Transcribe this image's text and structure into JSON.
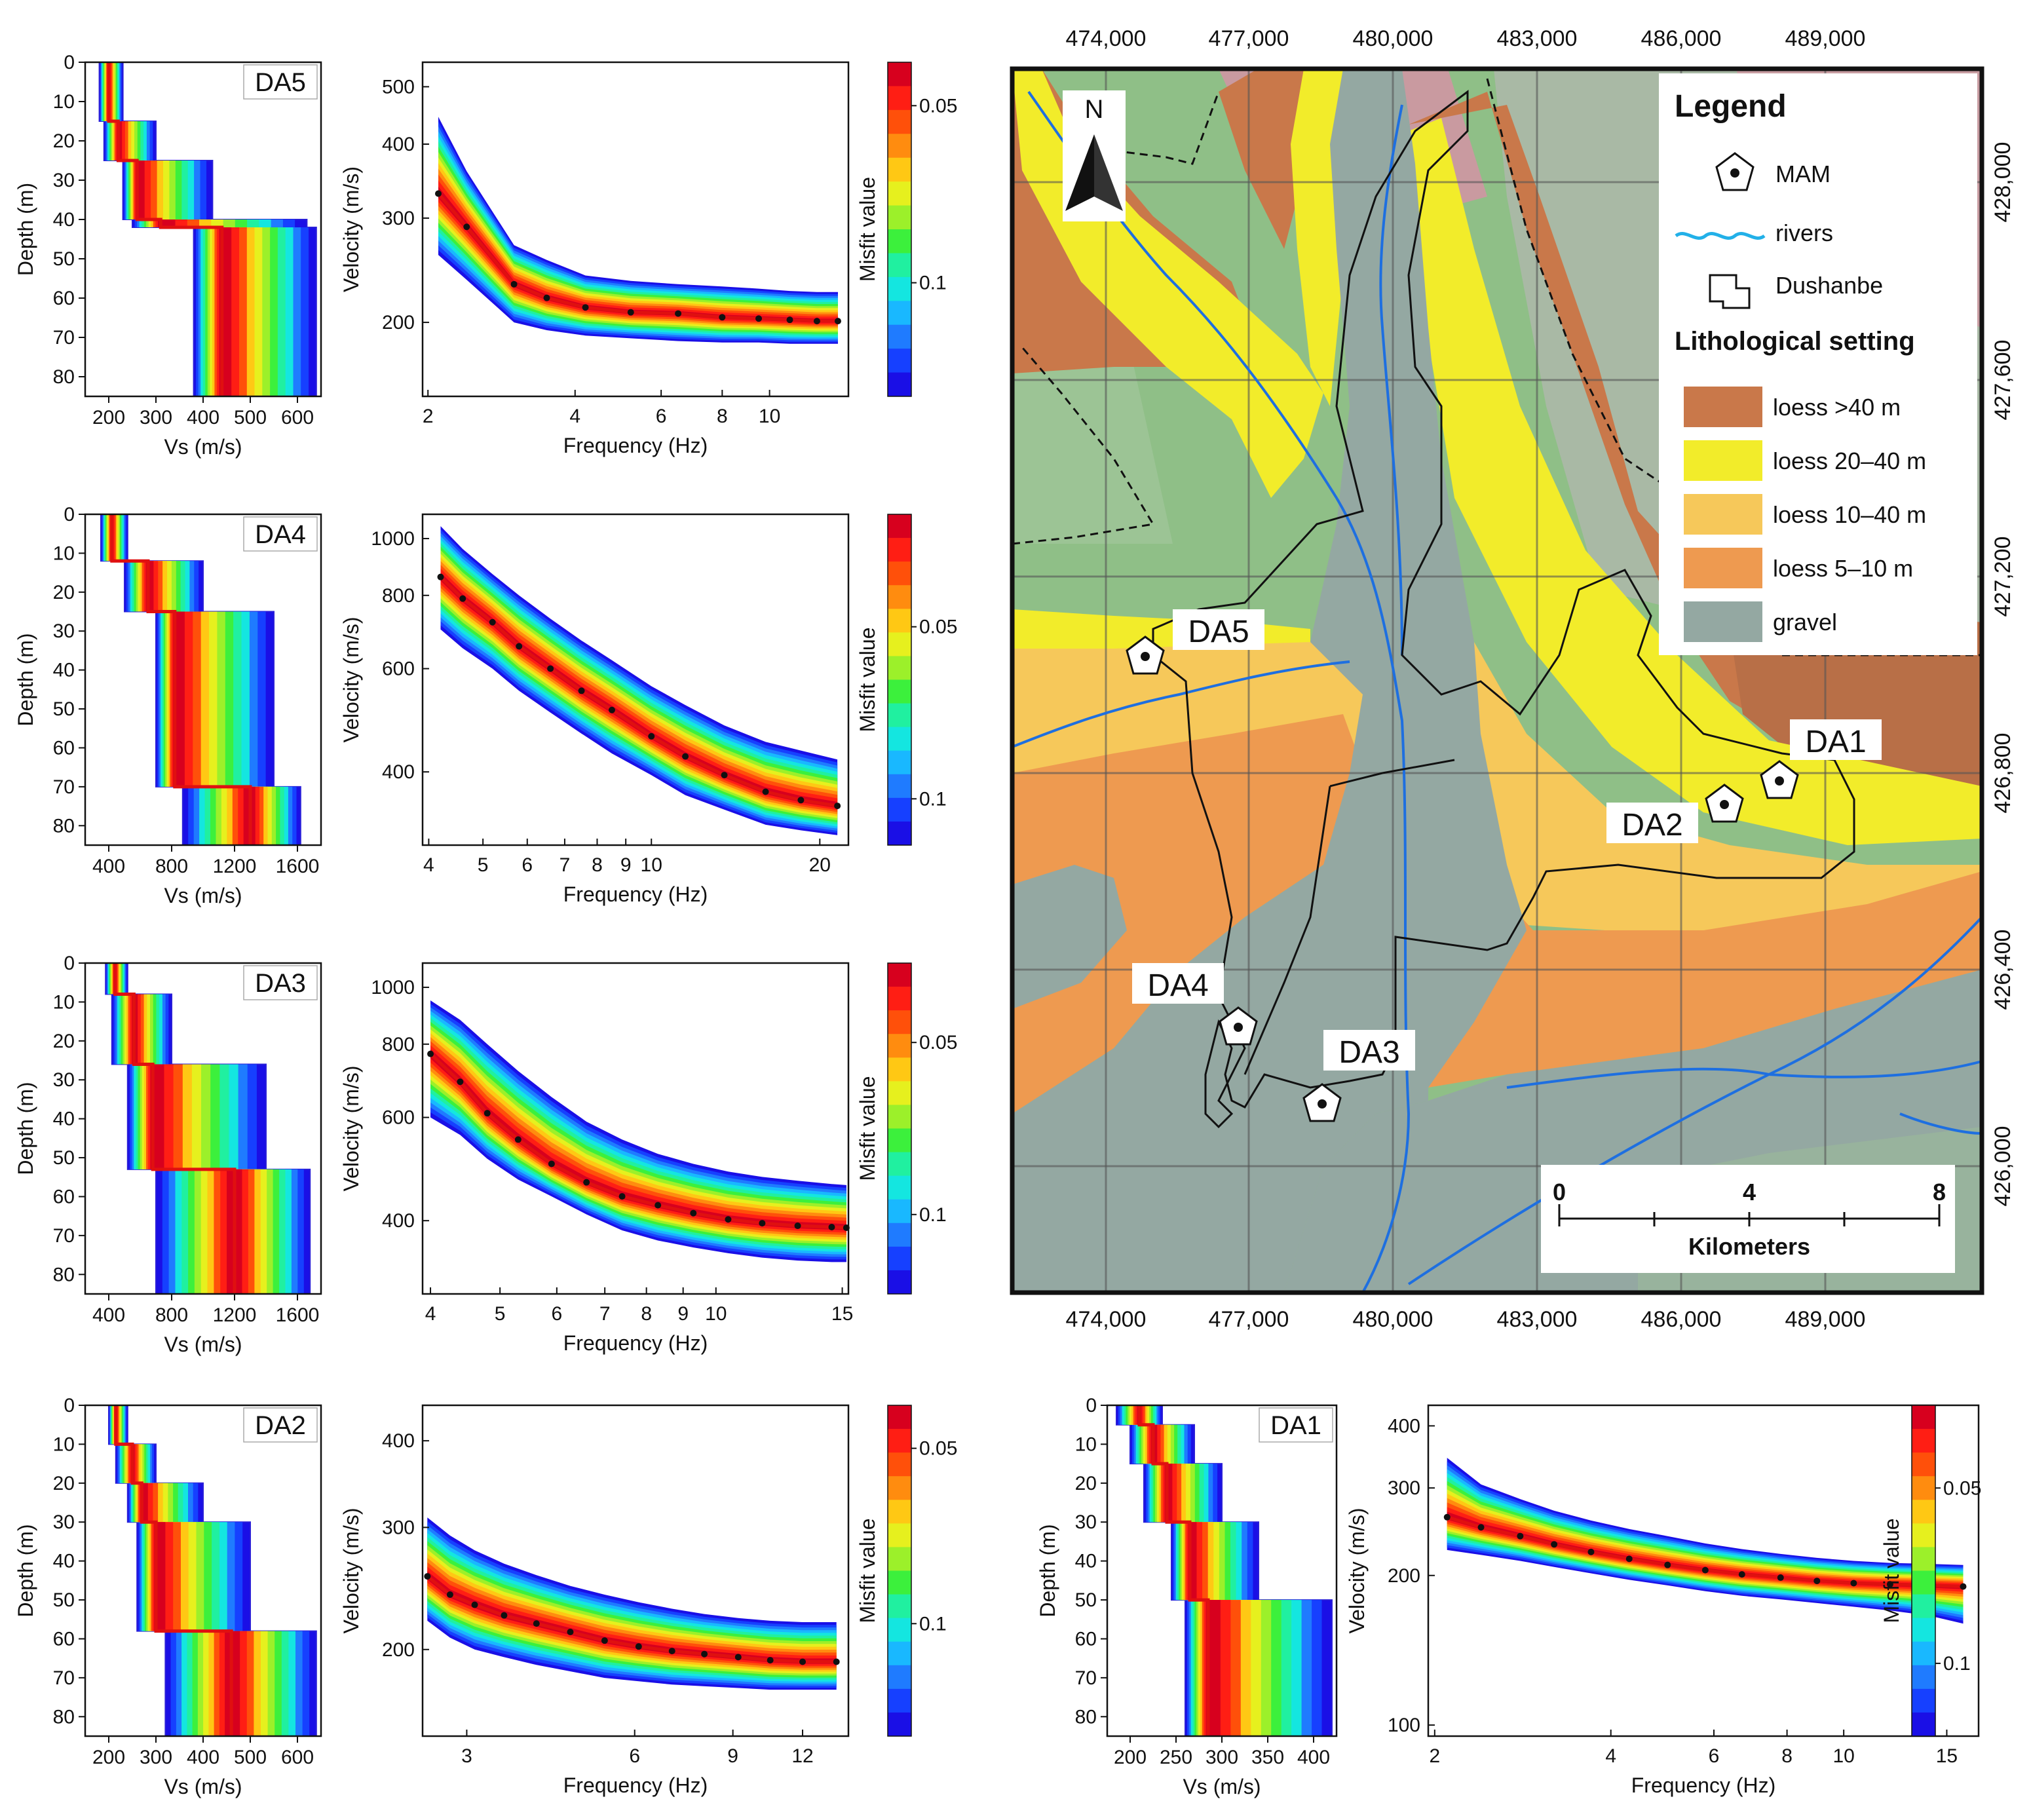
{
  "colors": {
    "misfit_scale": [
      "#1a0fe6",
      "#1640ff",
      "#1f7bff",
      "#19b8ff",
      "#14e6e0",
      "#20f0a0",
      "#3cf03c",
      "#9cf02a",
      "#e6f01e",
      "#ffc814",
      "#ff8c0f",
      "#ff500a",
      "#ff1e14",
      "#d7001e"
    ],
    "best_model": "#e01010",
    "loess_gt40": "#c9784a",
    "loess_20_40": "#f2ec2a",
    "loess_10_40": "#f6c85a",
    "loess_5_10": "#ee9a50",
    "gravel": "#94a8a2",
    "rivers": "#1e6fe0",
    "boundary": "#111111"
  },
  "chart_data": [
    {
      "id": "DA5-vs",
      "type": "step-profile",
      "site": "DA5",
      "xlabel": "Vs (m/s)",
      "ylabel": "Depth (m)",
      "xlim": [
        150,
        650
      ],
      "ylim": [
        0,
        85
      ],
      "xticks": [
        200,
        300,
        400,
        500,
        600
      ],
      "yticks": [
        0,
        10,
        20,
        30,
        40,
        50,
        60,
        70,
        80
      ],
      "best_model": {
        "vs": [
          200,
          220,
          260,
          310,
          440
        ],
        "top_depth": [
          0,
          15,
          25,
          40,
          42
        ]
      },
      "spread": {
        "min": [
          180,
          190,
          230,
          250,
          380
        ],
        "max": [
          230,
          300,
          420,
          620,
          640
        ]
      }
    },
    {
      "id": "DA5-disp",
      "type": "dispersion",
      "site": "DA5",
      "xlabel": "Frequency (Hz)",
      "ylabel": "Velocity (m/s)",
      "xscale": "log",
      "yscale": "log",
      "xlim": [
        1.95,
        14.5
      ],
      "ylim": [
        150,
        550
      ],
      "xticks": [
        2,
        4,
        6,
        8,
        10
      ],
      "yticks": [
        200,
        300,
        400,
        500
      ],
      "curve": {
        "x": [
          2.1,
          2.4,
          3.0,
          3.5,
          4.2,
          5.2,
          6.5,
          8,
          9.5,
          11,
          12.5,
          13.8
        ],
        "y": [
          330,
          290,
          232,
          220,
          212,
          208,
          207,
          204,
          203,
          202,
          201,
          201
        ]
      },
      "band_low": [
        260,
        236,
        200,
        194,
        190,
        188,
        186,
        185,
        185,
        184,
        184,
        184
      ],
      "band_high": [
        445,
        360,
        270,
        255,
        240,
        235,
        232,
        230,
        228,
        226,
        225,
        225
      ],
      "colorbar": {
        "label": "Misfit value",
        "ticks": [
          "0.05",
          "0.1"
        ],
        "tick_pos": [
          0.13,
          0.66
        ]
      }
    },
    {
      "id": "DA4-vs",
      "type": "step-profile",
      "site": "DA4",
      "xlabel": "Vs (m/s)",
      "ylabel": "Depth (m)",
      "xlim": [
        250,
        1750
      ],
      "ylim": [
        0,
        85
      ],
      "xticks": [
        400,
        800,
        1200,
        1600
      ],
      "yticks": [
        0,
        10,
        20,
        30,
        40,
        50,
        60,
        70,
        80
      ],
      "best_model": {
        "vs": [
          420,
          650,
          820,
          1300
        ],
        "top_depth": [
          0,
          12,
          25,
          70
        ]
      },
      "spread": {
        "min": [
          350,
          500,
          700,
          870
        ],
        "max": [
          520,
          1000,
          1450,
          1620
        ]
      }
    },
    {
      "id": "DA4-disp",
      "type": "dispersion",
      "site": "DA4",
      "xlabel": "Frequency (Hz)",
      "ylabel": "Velocity (m/s)",
      "xscale": "log",
      "yscale": "log",
      "xlim": [
        3.9,
        22.5
      ],
      "ylim": [
        300,
        1100
      ],
      "xticks": [
        4,
        5,
        6,
        7,
        8,
        9,
        10,
        20
      ],
      "yticks": [
        400,
        600,
        800,
        1000
      ],
      "curve": {
        "x": [
          4.2,
          4.6,
          5.2,
          5.8,
          6.6,
          7.5,
          8.5,
          10,
          11.5,
          13.5,
          16,
          18.5,
          21.5
        ],
        "y": [
          860,
          790,
          720,
          655,
          600,
          550,
          510,
          460,
          425,
          395,
          370,
          358,
          350
        ]
      },
      "band_low": [
        700,
        650,
        600,
        550,
        505,
        465,
        430,
        395,
        365,
        345,
        325,
        318,
        312
      ],
      "band_high": [
        1050,
        960,
        870,
        800,
        730,
        670,
        620,
        560,
        520,
        480,
        450,
        435,
        420
      ],
      "colorbar": {
        "label": "Misfit value",
        "ticks": [
          "0.05",
          "0.1"
        ],
        "tick_pos": [
          0.34,
          0.86
        ]
      }
    },
    {
      "id": "DA3-vs",
      "type": "step-profile",
      "site": "DA3",
      "xlabel": "Vs (m/s)",
      "ylabel": "Depth (m)",
      "xlim": [
        250,
        1750
      ],
      "ylim": [
        0,
        85
      ],
      "xticks": [
        400,
        800,
        1200,
        1600
      ],
      "yticks": [
        0,
        10,
        20,
        30,
        40,
        50,
        60,
        70,
        80
      ],
      "best_model": {
        "vs": [
          440,
          560,
          680,
          1200
        ],
        "top_depth": [
          0,
          8,
          26,
          53
        ]
      },
      "spread": {
        "min": [
          380,
          420,
          520,
          700
        ],
        "max": [
          520,
          800,
          1400,
          1680
        ]
      }
    },
    {
      "id": "DA3-disp",
      "type": "dispersion",
      "site": "DA3",
      "xlabel": "Frequency (Hz)",
      "ylabel": "Velocity (m/s)",
      "xscale": "log",
      "yscale": "log",
      "xlim": [
        3.9,
        15.3
      ],
      "ylim": [
        300,
        1100
      ],
      "xticks": [
        4,
        5,
        6,
        7,
        8,
        9,
        10,
        15
      ],
      "yticks": [
        400,
        600,
        800,
        1000
      ],
      "curve": {
        "x": [
          4,
          4.4,
          4.8,
          5.3,
          5.9,
          6.6,
          7.4,
          8.3,
          9.3,
          10.4,
          11.6,
          13,
          14.5,
          15.2
        ],
        "y": [
          770,
          690,
          610,
          550,
          500,
          465,
          440,
          425,
          412,
          402,
          396,
          392,
          390,
          389
        ]
      },
      "band_low": [
        600,
        560,
        510,
        470,
        440,
        410,
        385,
        370,
        360,
        352,
        346,
        342,
        340,
        340
      ],
      "band_high": [
        950,
        880,
        800,
        720,
        650,
        590,
        550,
        520,
        500,
        485,
        475,
        468,
        462,
        460
      ],
      "colorbar": {
        "label": "Misfit value",
        "ticks": [
          "0.05",
          "0.1"
        ],
        "tick_pos": [
          0.24,
          0.76
        ]
      }
    },
    {
      "id": "DA2-vs",
      "type": "step-profile",
      "site": "DA2",
      "xlabel": "Vs (m/s)",
      "ylabel": "Depth (m)",
      "xlim": [
        150,
        650
      ],
      "ylim": [
        0,
        85
      ],
      "xticks": [
        200,
        300,
        400,
        500,
        600
      ],
      "yticks": [
        0,
        10,
        20,
        30,
        40,
        50,
        60,
        70,
        80
      ],
      "best_model": {
        "vs": [
          215,
          250,
          270,
          300,
          460
        ],
        "top_depth": [
          0,
          10,
          20,
          30,
          58
        ]
      },
      "spread": {
        "min": [
          200,
          215,
          240,
          260,
          320
        ],
        "max": [
          240,
          300,
          400,
          500,
          640
        ]
      }
    },
    {
      "id": "DA2-disp",
      "type": "dispersion",
      "site": "DA2",
      "xlabel": "Frequency (Hz)",
      "ylabel": "Velocity (m/s)",
      "xscale": "log",
      "yscale": "log",
      "xlim": [
        2.5,
        14.5
      ],
      "ylim": [
        150,
        450
      ],
      "xticks": [
        3,
        6,
        9,
        12
      ],
      "yticks": [
        200,
        300,
        400
      ],
      "curve": {
        "x": [
          2.55,
          2.8,
          3.1,
          3.5,
          4,
          4.6,
          5.3,
          6.1,
          7,
          8,
          9.2,
          10.5,
          12,
          13.8
        ],
        "y": [
          255,
          240,
          232,
          224,
          218,
          212,
          206,
          202,
          199,
          197,
          195,
          193,
          192,
          192
        ]
      },
      "band_low": [
        220,
        208,
        200,
        195,
        190,
        186,
        182,
        180,
        178,
        177,
        176,
        175,
        175,
        175
      ],
      "band_high": [
        310,
        292,
        278,
        266,
        256,
        247,
        240,
        234,
        229,
        225,
        222,
        220,
        219,
        219
      ],
      "colorbar": {
        "label": "Misfit value",
        "ticks": [
          "0.05",
          "0.1"
        ],
        "tick_pos": [
          0.13,
          0.66
        ]
      }
    },
    {
      "id": "DA1-vs",
      "type": "step-profile",
      "site": "DA1",
      "xlabel": "Vs (m/s)",
      "ylabel": "Depth (m)",
      "xlim": [
        175,
        425
      ],
      "ylim": [
        0,
        85
      ],
      "xticks": [
        200,
        250,
        300,
        350,
        400
      ],
      "yticks": [
        0,
        10,
        20,
        30,
        40,
        50,
        60,
        70,
        80
      ],
      "best_model": {
        "vs": [
          210,
          225,
          240,
          265,
          285
        ],
        "top_depth": [
          0,
          5,
          15,
          30,
          50
        ]
      },
      "spread": {
        "min": [
          185,
          200,
          215,
          245,
          260
        ],
        "max": [
          235,
          270,
          300,
          340,
          420
        ]
      }
    },
    {
      "id": "DA1-disp",
      "type": "dispersion",
      "site": "DA1",
      "xlabel": "Frequency (Hz)",
      "ylabel": "Velocity (m/s)",
      "xscale": "log",
      "yscale": "log",
      "xlim": [
        1.95,
        17
      ],
      "ylim": [
        95,
        440
      ],
      "xticks": [
        2,
        4,
        6,
        8,
        10,
        15
      ],
      "yticks": [
        100,
        200,
        300,
        400
      ],
      "curve": {
        "x": [
          2.1,
          2.4,
          2.8,
          3.2,
          3.7,
          4.3,
          5,
          5.8,
          6.7,
          7.8,
          9,
          10.4,
          12,
          14,
          16
        ],
        "y": [
          262,
          250,
          240,
          231,
          223,
          216,
          210,
          205,
          201,
          198,
          195,
          193,
          192,
          191,
          190
        ]
      },
      "band_low": [
        225,
        220,
        214,
        208,
        202,
        196,
        191,
        186,
        182,
        179,
        176,
        173,
        170,
        166,
        160
      ],
      "band_high": [
        345,
        305,
        285,
        270,
        258,
        248,
        240,
        232,
        226,
        221,
        217,
        214,
        212,
        211,
        210
      ],
      "colorbar": {
        "label": "Misfit value",
        "ticks": [
          "0.05",
          "0.1"
        ],
        "tick_pos": [
          0.25,
          0.78
        ]
      }
    }
  ],
  "map": {
    "x_ticks": [
      "474,000",
      "477,000",
      "480,000",
      "483,000",
      "486,000",
      "489,000"
    ],
    "y_ticks": [
      "428,000",
      "427,600",
      "427,200",
      "426,800",
      "426,400",
      "426,000"
    ],
    "north_label": "N",
    "site_labels": [
      "DA5",
      "DA4",
      "DA3",
      "DA2",
      "DA1"
    ],
    "legend": {
      "title": "Legend",
      "items": [
        "MAM",
        "rivers",
        "Dushanbe"
      ],
      "litho_title": "Lithological setting",
      "litho": [
        "loess  >40 m",
        "loess  20–40 m",
        "loess  10–40 m",
        "loess  5–10 m",
        "gravel"
      ]
    },
    "scale": {
      "labels": [
        "0",
        "4",
        "8"
      ],
      "unit": "Kilometers"
    }
  }
}
